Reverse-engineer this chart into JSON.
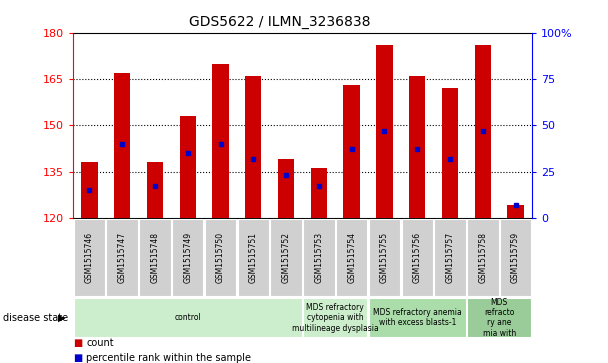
{
  "title": "GDS5622 / ILMN_3236838",
  "samples": [
    "GSM1515746",
    "GSM1515747",
    "GSM1515748",
    "GSM1515749",
    "GSM1515750",
    "GSM1515751",
    "GSM1515752",
    "GSM1515753",
    "GSM1515754",
    "GSM1515755",
    "GSM1515756",
    "GSM1515757",
    "GSM1515758",
    "GSM1515759"
  ],
  "counts": [
    138,
    167,
    138,
    153,
    170,
    166,
    139,
    136,
    163,
    176,
    166,
    162,
    176,
    124
  ],
  "percentile_ranks": [
    15,
    40,
    17,
    35,
    40,
    32,
    23,
    17,
    37,
    47,
    37,
    32,
    47,
    7
  ],
  "ymin": 120,
  "ymax": 180,
  "yticks_left": [
    120,
    135,
    150,
    165,
    180
  ],
  "yticks_right": [
    0,
    25,
    50,
    75,
    100
  ],
  "bar_color": "#CC0000",
  "dot_color": "#0000CC",
  "bar_bottom": 120,
  "sample_box_color": "#d0d0d0",
  "disease_groups": [
    {
      "label": "control",
      "start": 0,
      "end": 7,
      "color": "#cceecc"
    },
    {
      "label": "MDS refractory\ncytopenia with\nmultilineage dysplasia",
      "start": 7,
      "end": 9,
      "color": "#cceecc"
    },
    {
      "label": "MDS refractory anemia\nwith excess blasts-1",
      "start": 9,
      "end": 12,
      "color": "#aaddaa"
    },
    {
      "label": "MDS\nrefracto\nry ane\nmia with",
      "start": 12,
      "end": 14,
      "color": "#99cc99"
    }
  ],
  "legend_count_color": "#CC0000",
  "legend_dot_color": "#0000CC",
  "background_color": "#ffffff",
  "gridline_ticks": [
    135,
    150,
    165
  ]
}
